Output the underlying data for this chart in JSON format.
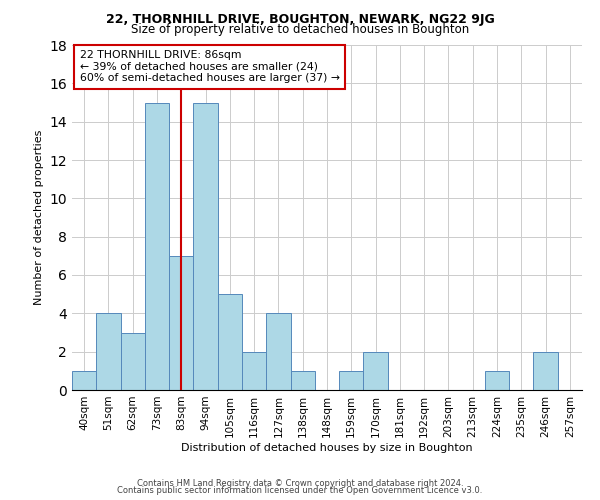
{
  "title": "22, THORNHILL DRIVE, BOUGHTON, NEWARK, NG22 9JG",
  "subtitle": "Size of property relative to detached houses in Boughton",
  "xlabel": "Distribution of detached houses by size in Boughton",
  "ylabel": "Number of detached properties",
  "bin_labels": [
    "40sqm",
    "51sqm",
    "62sqm",
    "73sqm",
    "83sqm",
    "94sqm",
    "105sqm",
    "116sqm",
    "127sqm",
    "138sqm",
    "148sqm",
    "159sqm",
    "170sqm",
    "181sqm",
    "192sqm",
    "203sqm",
    "213sqm",
    "224sqm",
    "235sqm",
    "246sqm",
    "257sqm"
  ],
  "bar_values": [
    1,
    4,
    3,
    15,
    7,
    15,
    5,
    2,
    4,
    1,
    0,
    1,
    2,
    0,
    0,
    0,
    0,
    1,
    0,
    2,
    0
  ],
  "bar_color": "#add8e6",
  "bar_edge_color": "#5588bb",
  "vline_color": "#cc0000",
  "vline_x_index": 4.5,
  "annotation_title": "22 THORNHILL DRIVE: 86sqm",
  "annotation_line1": "← 39% of detached houses are smaller (24)",
  "annotation_line2": "60% of semi-detached houses are larger (37) →",
  "ylim": [
    0,
    18
  ],
  "yticks": [
    0,
    2,
    4,
    6,
    8,
    10,
    12,
    14,
    16,
    18
  ],
  "footer1": "Contains HM Land Registry data © Crown copyright and database right 2024.",
  "footer2": "Contains public sector information licensed under the Open Government Licence v3.0.",
  "background_color": "#ffffff",
  "grid_color": "#cccccc",
  "title_fontsize": 9,
  "subtitle_fontsize": 8.5,
  "ylabel_fontsize": 8,
  "xlabel_fontsize": 8
}
